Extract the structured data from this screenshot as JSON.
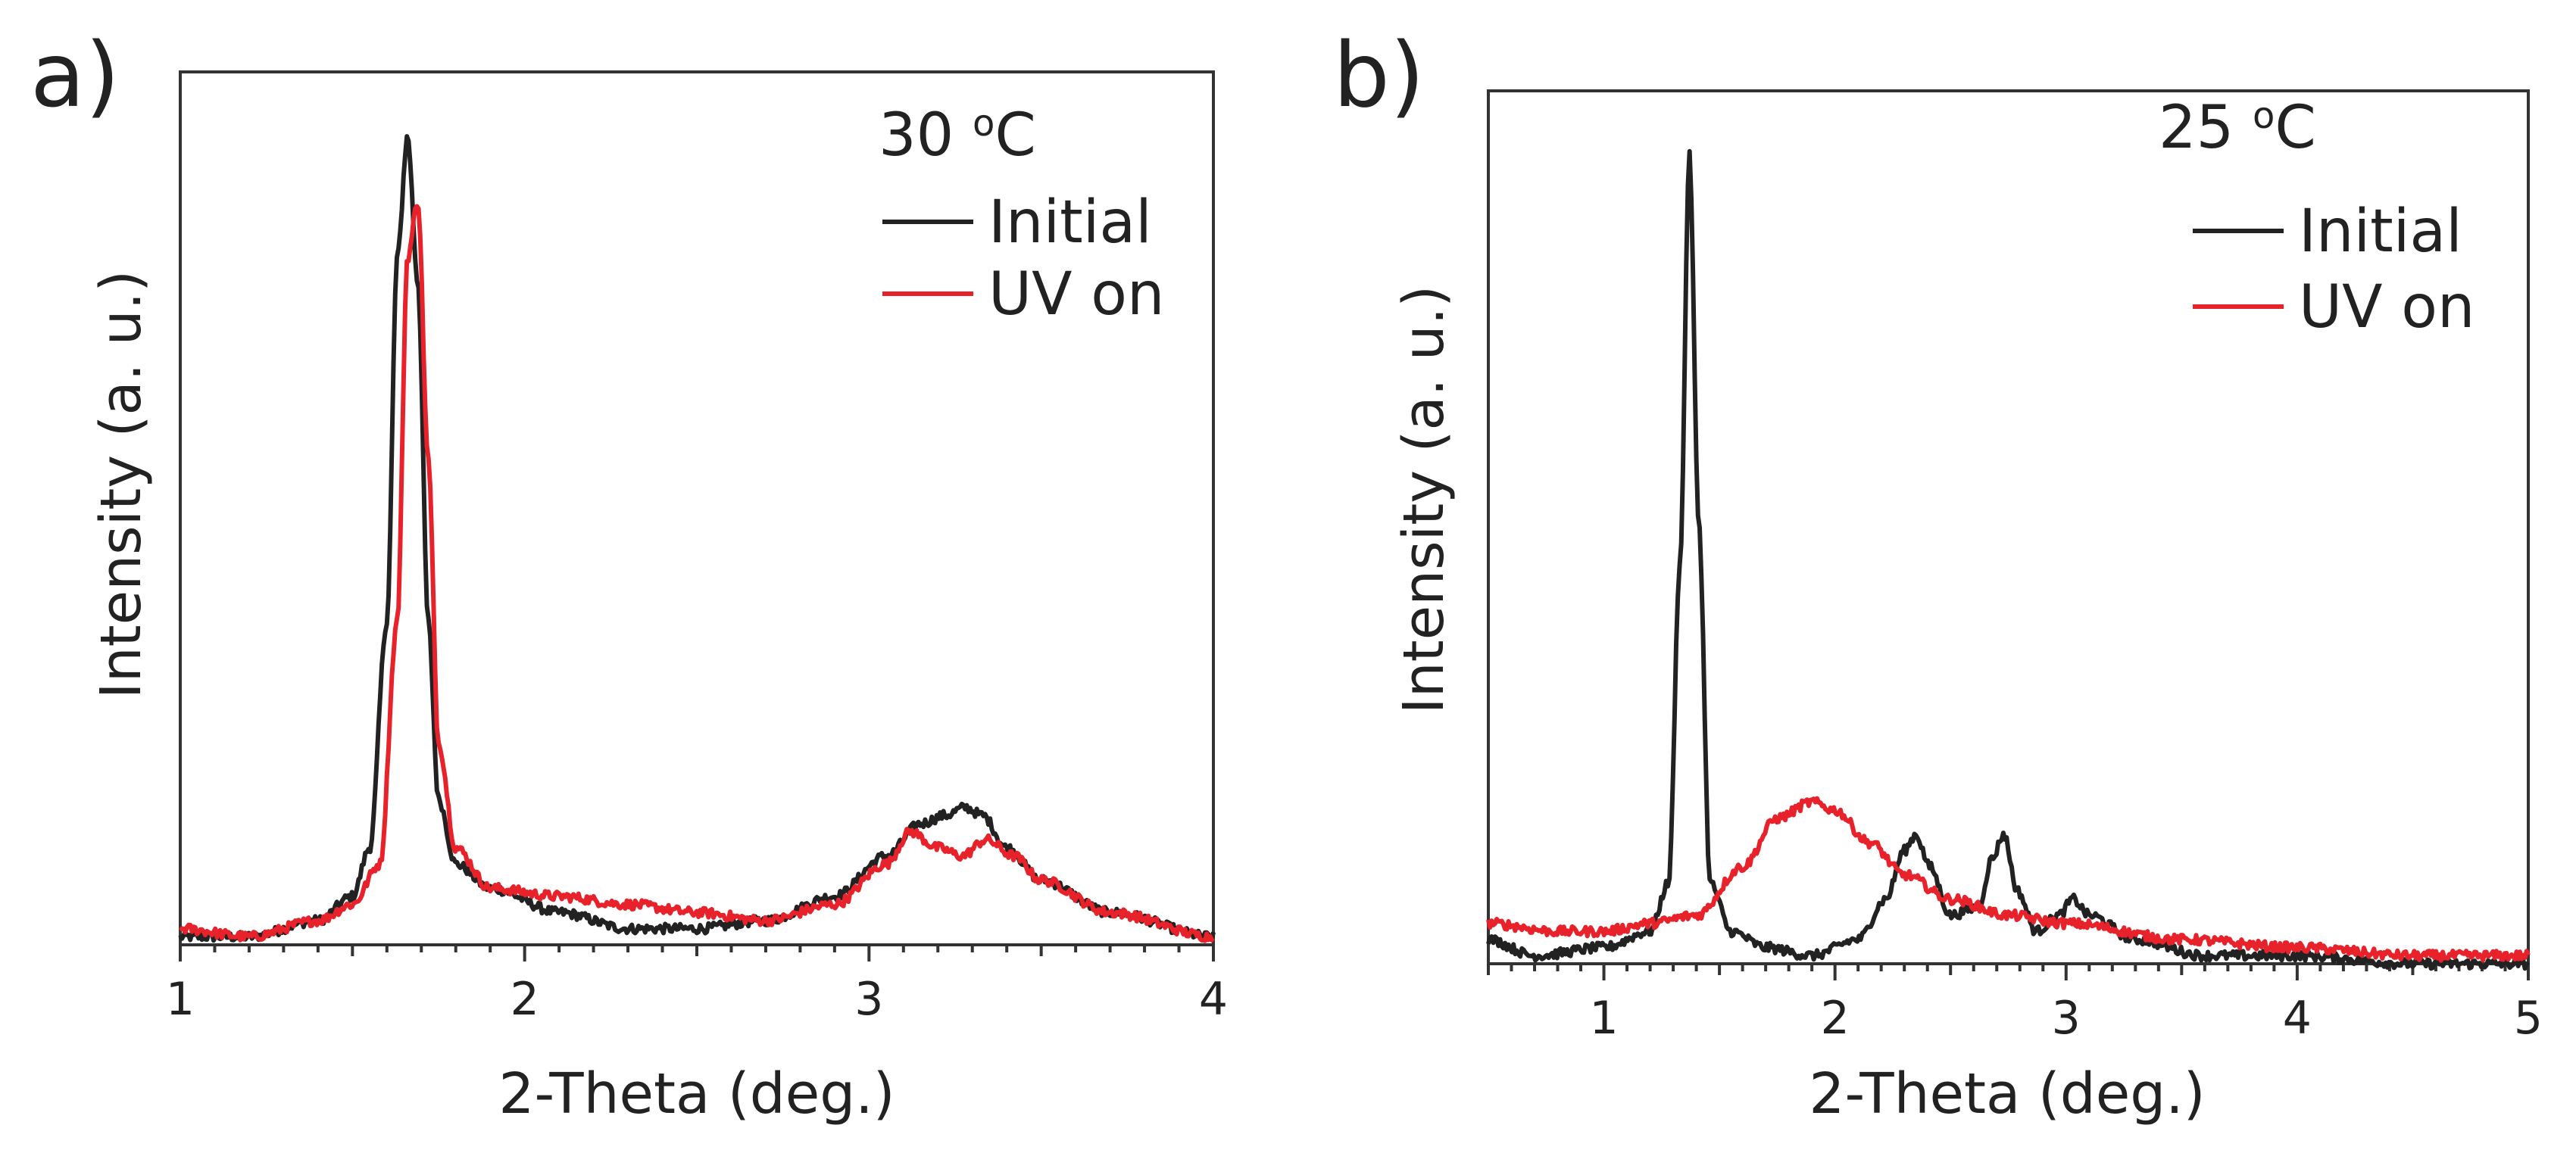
{
  "chart_data": [
    {
      "panel": "a)",
      "type": "line",
      "annotation_temp": "30 ",
      "annotation_sup": "o",
      "annotation_unit": "C",
      "xlabel": "2-Theta (deg.)",
      "ylabel": "Intensity (a. u.)",
      "xlim": [
        1,
        4
      ],
      "ylim": [
        0,
        1.08
      ],
      "xticks": [
        1,
        2,
        3,
        4
      ],
      "legend_position": "top-right",
      "series": [
        {
          "name": "Initial",
          "color": "#222222",
          "x": [
            1.0,
            1.2,
            1.4,
            1.5,
            1.55,
            1.6,
            1.63,
            1.66,
            1.69,
            1.72,
            1.75,
            1.8,
            1.9,
            2.1,
            2.3,
            2.5,
            2.7,
            2.9,
            3.05,
            3.15,
            3.22,
            3.28,
            3.33,
            3.4,
            3.5,
            3.7,
            4.0
          ],
          "y": [
            0.01,
            0.01,
            0.03,
            0.06,
            0.12,
            0.4,
            0.85,
            1.0,
            0.82,
            0.4,
            0.18,
            0.1,
            0.07,
            0.04,
            0.02,
            0.02,
            0.03,
            0.06,
            0.11,
            0.15,
            0.16,
            0.17,
            0.16,
            0.12,
            0.08,
            0.04,
            0.01
          ]
        },
        {
          "name": "UV on",
          "color": "#e8222a",
          "x": [
            1.0,
            1.2,
            1.4,
            1.5,
            1.58,
            1.63,
            1.66,
            1.69,
            1.72,
            1.75,
            1.8,
            1.9,
            2.1,
            2.3,
            2.5,
            2.7,
            2.9,
            3.05,
            3.12,
            3.2,
            3.27,
            3.34,
            3.42,
            3.5,
            3.7,
            4.0
          ],
          "y": [
            0.02,
            0.01,
            0.03,
            0.05,
            0.1,
            0.4,
            0.85,
            0.92,
            0.6,
            0.25,
            0.12,
            0.07,
            0.06,
            0.05,
            0.04,
            0.03,
            0.05,
            0.1,
            0.14,
            0.12,
            0.11,
            0.13,
            0.11,
            0.08,
            0.04,
            0.01
          ]
        }
      ]
    },
    {
      "panel": "b)",
      "type": "line",
      "annotation_temp": "25 ",
      "annotation_sup": "o",
      "annotation_unit": "C",
      "xlabel": "2-Theta (deg.)",
      "ylabel": "Intensity (a. u.)",
      "xlim": [
        0.5,
        5
      ],
      "ylim": [
        0,
        1.08
      ],
      "xticks": [
        1,
        2,
        3,
        4,
        5
      ],
      "legend_position": "top-right",
      "series": [
        {
          "name": "Initial",
          "color": "#222222",
          "x": [
            0.5,
            0.7,
            1.0,
            1.2,
            1.28,
            1.33,
            1.37,
            1.41,
            1.46,
            1.55,
            1.7,
            1.9,
            2.1,
            2.22,
            2.3,
            2.35,
            2.41,
            2.5,
            2.62,
            2.68,
            2.73,
            2.79,
            2.87,
            2.97,
            3.03,
            3.1,
            3.3,
            3.6,
            4.0,
            4.5,
            5.0
          ],
          "y": [
            0.03,
            0.01,
            0.02,
            0.04,
            0.1,
            0.5,
            1.0,
            0.55,
            0.1,
            0.04,
            0.02,
            0.01,
            0.03,
            0.08,
            0.14,
            0.16,
            0.12,
            0.06,
            0.07,
            0.13,
            0.16,
            0.09,
            0.04,
            0.06,
            0.08,
            0.06,
            0.03,
            0.01,
            0.01,
            0.0,
            0.0
          ]
        },
        {
          "name": "UV on",
          "color": "#e8222a",
          "x": [
            0.5,
            0.8,
            1.0,
            1.2,
            1.4,
            1.6,
            1.75,
            1.9,
            2.0,
            2.15,
            2.3,
            2.5,
            2.75,
            3.0,
            3.5,
            4.0,
            4.5,
            5.0
          ],
          "y": [
            0.05,
            0.04,
            0.04,
            0.05,
            0.06,
            0.12,
            0.18,
            0.2,
            0.19,
            0.15,
            0.11,
            0.08,
            0.06,
            0.05,
            0.03,
            0.02,
            0.01,
            0.01
          ]
        }
      ]
    }
  ]
}
